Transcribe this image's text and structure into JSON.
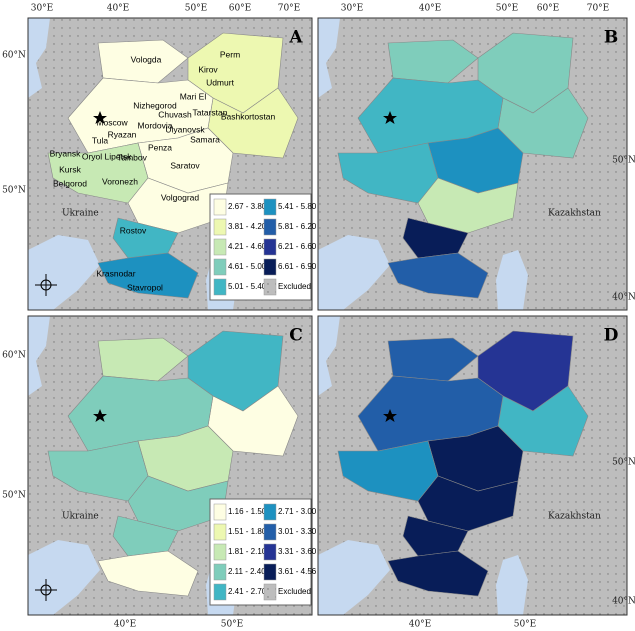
{
  "panels": [
    {
      "letter": "A",
      "top_lon": [
        "30°E",
        "40°E",
        "50°E",
        "60°E",
        "70°E"
      ],
      "left_lat": [
        "60°N",
        "50°N"
      ],
      "country": "Ukraine",
      "regions": [
        "Vologda",
        "Perm",
        "Kirov",
        "Udmurt",
        "Mari El",
        "Nizhegorod",
        "Chuvash",
        "Tatarstan",
        "Bashkortostan",
        "Moscow",
        "Mordovia",
        "Ryazan",
        "Ulyanovsk",
        "Samara",
        "Tula",
        "Penza",
        "Bryansk",
        "Oryol",
        "Lipetsk",
        "Tambov",
        "Saratov",
        "Kursk",
        "Voronezh",
        "Belgorod",
        "Volgograd",
        "Rostov",
        "Krasnodar",
        "Stavropol"
      ],
      "legend": [
        {
          "label": "2.67 - 3.80",
          "color": "#fefee3"
        },
        {
          "label": "3.81 - 4.20",
          "color": "#edf8b1"
        },
        {
          "label": "4.21 - 4.60",
          "color": "#c7e9b4"
        },
        {
          "label": "4.61 - 5.00",
          "color": "#7fcdbb"
        },
        {
          "label": "5.01 - 5.40",
          "color": "#41b6c4"
        },
        {
          "label": "5.41 - 5.80",
          "color": "#1d91c0"
        },
        {
          "label": "5.81 - 6.20",
          "color": "#225ea8"
        },
        {
          "label": "6.21 - 6.60",
          "color": "#253494"
        },
        {
          "label": "6.61 - 6.90",
          "color": "#081d58"
        },
        {
          "label": "Excluded",
          "color": "#bdbdbd"
        }
      ]
    },
    {
      "letter": "B",
      "top_lon": [
        "30°E",
        "40°E",
        "50°E",
        "60°E",
        "70°E"
      ],
      "right_lat": [
        "50°N",
        "40°N"
      ],
      "country": "Kazakhstan"
    },
    {
      "letter": "C",
      "left_lat": [
        "60°N",
        "50°N"
      ],
      "bottom_lon": [
        "40°E",
        "50°E"
      ],
      "country": "Ukraine",
      "legend": [
        {
          "label": "1.16 - 1.50",
          "color": "#fefee3"
        },
        {
          "label": "1.51 - 1.80",
          "color": "#edf8b1"
        },
        {
          "label": "1.81 - 2.10",
          "color": "#c7e9b4"
        },
        {
          "label": "2.11 - 2.40",
          "color": "#7fcdbb"
        },
        {
          "label": "2.41 - 2.70",
          "color": "#41b6c4"
        },
        {
          "label": "2.71 - 3.00",
          "color": "#1d91c0"
        },
        {
          "label": "3.01 - 3.30",
          "color": "#225ea8"
        },
        {
          "label": "3.31 - 3.60",
          "color": "#253494"
        },
        {
          "label": "3.61 - 4.56",
          "color": "#081d58"
        },
        {
          "label": "Excluded",
          "color": "#bdbdbd"
        }
      ]
    },
    {
      "letter": "D",
      "right_lat": [
        "50°N",
        "40°N"
      ],
      "bottom_lon": [
        "40°E",
        "50°E"
      ],
      "country": "Kazakhstan"
    }
  ]
}
